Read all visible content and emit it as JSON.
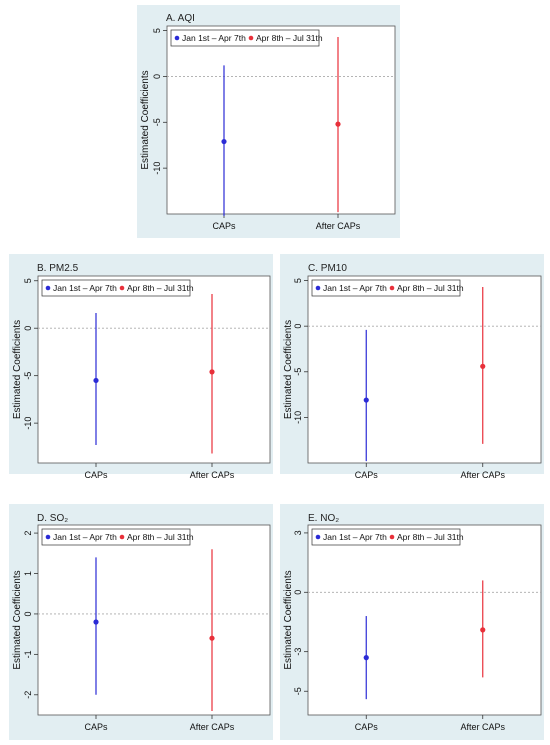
{
  "legend": {
    "series1": "Jan 1st – Apr 7th",
    "series2": "Apr 8th – Jul 31th"
  },
  "colors": {
    "series1": "#2b2bd6",
    "series2": "#e8303a",
    "panel_bg": "#e2eef2",
    "zero_line": "#aaaaaa"
  },
  "ylabel": "Estimated Coefficients",
  "chart_data": [
    {
      "type": "scatter",
      "panel": "A",
      "title": "A. AQI",
      "categories": [
        "CAPs",
        "After CAPs"
      ],
      "ylabel": "Estimated Coefficients",
      "yticks": [
        5,
        0,
        -5,
        -10
      ],
      "ylim": [
        -15,
        5.5
      ],
      "series": [
        {
          "name": "Jan 1st – Apr 7th",
          "color": "#2b2bd6",
          "x": "CAPs",
          "estimate": -7.1,
          "ci": [
            -15.2,
            1.2
          ]
        },
        {
          "name": "Apr 8th – Jul 31th",
          "color": "#e8303a",
          "x": "After CAPs",
          "estimate": -5.2,
          "ci": [
            -14.8,
            4.3
          ]
        }
      ]
    },
    {
      "type": "scatter",
      "panel": "B",
      "title": "B. PM2.5",
      "categories": [
        "CAPs",
        "After CAPs"
      ],
      "ylabel": "Estimated Coefficients",
      "yticks": [
        5,
        0,
        -5,
        -10
      ],
      "ylim": [
        -14.2,
        5.5
      ],
      "series": [
        {
          "name": "Jan 1st – Apr 7th",
          "color": "#2b2bd6",
          "x": "CAPs",
          "estimate": -5.5,
          "ci": [
            -12.3,
            1.6
          ]
        },
        {
          "name": "Apr 8th – Jul 31th",
          "color": "#e8303a",
          "x": "After CAPs",
          "estimate": -4.6,
          "ci": [
            -13.2,
            3.6
          ]
        }
      ]
    },
    {
      "type": "scatter",
      "panel": "C",
      "title": "C. PM10",
      "categories": [
        "CAPs",
        "After CAPs"
      ],
      "ylabel": "Estimated Coefficients",
      "yticks": [
        5,
        0,
        -5,
        -10
      ],
      "ylim": [
        -15,
        5.5
      ],
      "series": [
        {
          "name": "Jan 1st – Apr 7th",
          "color": "#2b2bd6",
          "x": "CAPs",
          "estimate": -8.1,
          "ci": [
            -14.8,
            -0.4
          ]
        },
        {
          "name": "Apr 8th – Jul 31th",
          "color": "#e8303a",
          "x": "After CAPs",
          "estimate": -4.4,
          "ci": [
            -12.9,
            4.3
          ]
        }
      ]
    },
    {
      "type": "scatter",
      "panel": "D",
      "title": "D. SO₂",
      "categories": [
        "CAPs",
        "After CAPs"
      ],
      "ylabel": "Estimated Coefficients",
      "yticks": [
        2,
        1,
        0,
        -1,
        -2
      ],
      "ylim": [
        -2.5,
        2.2
      ],
      "series": [
        {
          "name": "Jan 1st – Apr 7th",
          "color": "#2b2bd6",
          "x": "CAPs",
          "estimate": -0.2,
          "ci": [
            -2.0,
            1.4
          ]
        },
        {
          "name": "Apr 8th – Jul 31th",
          "color": "#e8303a",
          "x": "After CAPs",
          "estimate": -0.6,
          "ci": [
            -2.4,
            1.6
          ]
        }
      ]
    },
    {
      "type": "scatter",
      "panel": "E",
      "title": "E. NO₂",
      "categories": [
        "CAPs",
        "After CAPs"
      ],
      "ylabel": "Estimated Coefficients",
      "yticks": [
        3,
        0,
        -3,
        -5
      ],
      "tick_labels": [
        "3",
        "0",
        "-3",
        "-5"
      ],
      "ylim": [
        -6.2,
        3.4
      ],
      "series": [
        {
          "name": "Jan 1st – Apr 7th",
          "color": "#2b2bd6",
          "x": "CAPs",
          "estimate": -3.3,
          "ci": [
            -5.4,
            -1.2
          ]
        },
        {
          "name": "Apr 8th – Jul 31th",
          "color": "#e8303a",
          "x": "After CAPs",
          "estimate": -1.9,
          "ci": [
            -4.3,
            0.6
          ]
        }
      ]
    }
  ]
}
